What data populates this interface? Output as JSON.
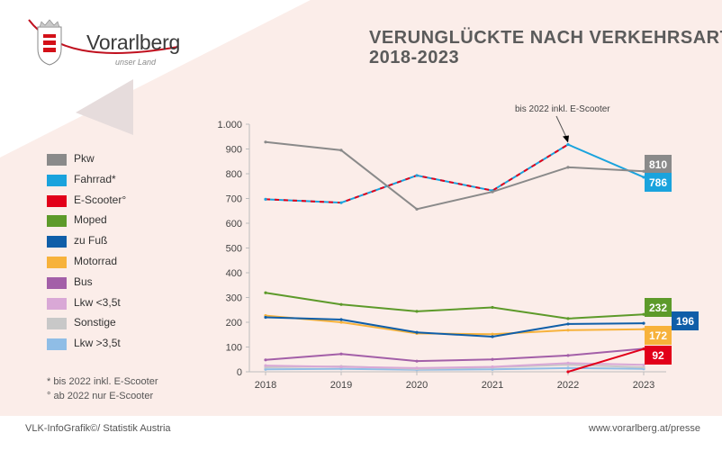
{
  "logo": {
    "title": "Vorarlberg",
    "subtitle": "unser Land"
  },
  "header": {
    "title_line1": "VERUNGLÜCKTE NACH VERKEHRSART",
    "title_line2": "2018-2023"
  },
  "footnotes": {
    "line1": "* bis 2022 inkl. E-Scooter",
    "line2": "° ab 2022 nur E-Scooter"
  },
  "footer": {
    "source": "VLK-InfoGrafik©/ Statistik Austria",
    "url": "www.vorarlberg.at/presse"
  },
  "chart_data": {
    "type": "line",
    "title": "VERUNGLÜCKTE NACH VERKEHRSART 2018-2023",
    "xlabel": "",
    "ylabel": "",
    "categories": [
      "2018",
      "2019",
      "2020",
      "2021",
      "2022",
      "2023"
    ],
    "ylim": [
      0,
      1000
    ],
    "yticks": [
      0,
      100,
      200,
      300,
      400,
      500,
      600,
      700,
      800,
      900,
      1000
    ],
    "ytick_labels": [
      "0",
      "100",
      "200",
      "300",
      "400",
      "500",
      "600",
      "700",
      "800",
      "900",
      "1.000"
    ],
    "grid": true,
    "legend_position": "left",
    "annotation": "bis 2022 inkl. E-Scooter",
    "series": [
      {
        "name": "Pkw",
        "color": "#8a8a8a",
        "values": [
          928,
          895,
          657,
          727,
          826,
          810
        ],
        "end_label": "810"
      },
      {
        "name": "Fahrrad*",
        "color": "#1aa3dd",
        "values": [
          697,
          683,
          793,
          732,
          918,
          786
        ],
        "end_label": "786",
        "dashed_until": 4
      },
      {
        "name": "E-Scooter°",
        "color": "#e2001a",
        "values": [
          null,
          null,
          null,
          null,
          0,
          92
        ],
        "end_label": "92"
      },
      {
        "name": "Moped",
        "color": "#5d9a2a",
        "values": [
          319,
          272,
          244,
          260,
          215,
          232
        ],
        "end_label": "232"
      },
      {
        "name": "zu Fuß",
        "color": "#0f5ea8",
        "values": [
          220,
          211,
          159,
          142,
          193,
          196
        ],
        "end_label": "196"
      },
      {
        "name": "Motorrad",
        "color": "#f7b23b",
        "values": [
          227,
          200,
          155,
          152,
          168,
          172
        ],
        "end_label": "172"
      },
      {
        "name": "Bus",
        "color": "#a35fa8",
        "values": [
          48,
          72,
          43,
          50,
          66,
          93
        ],
        "end_label": ""
      },
      {
        "name": "Lkw <3,5t",
        "color": "#d9a8d6",
        "values": [
          25,
          20,
          15,
          20,
          35,
          28
        ],
        "end_label": ""
      },
      {
        "name": "Sonstige",
        "color": "#c8c8c8",
        "values": [
          18,
          22,
          12,
          18,
          28,
          18
        ],
        "end_label": ""
      },
      {
        "name": "Lkw >3,5t",
        "color": "#8fbde6",
        "values": [
          10,
          12,
          8,
          10,
          15,
          12
        ],
        "end_label": ""
      }
    ]
  }
}
